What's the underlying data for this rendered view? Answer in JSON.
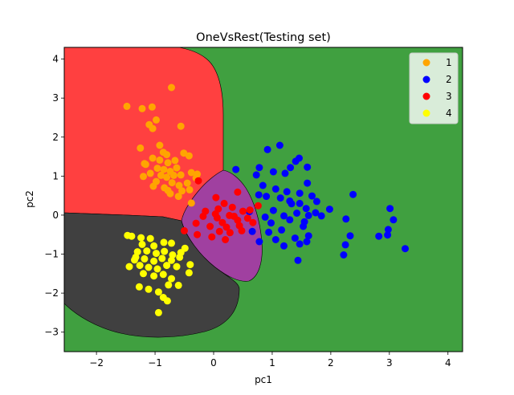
{
  "chart_data": {
    "type": "scatter",
    "title": "OneVsRest(Testing set)",
    "xlabel": "pc1",
    "ylabel": "pc2",
    "xlim": [
      -2.55,
      4.25
    ],
    "ylim": [
      -3.5,
      4.3
    ],
    "xticks": [
      "-2",
      "-1",
      "0",
      "1",
      "2",
      "3",
      "4"
    ],
    "yticks": [
      "-3",
      "-2",
      "-1",
      "0",
      "1",
      "2",
      "3",
      "4"
    ],
    "grid": false,
    "legend_placement": "top-right",
    "region_colors": {
      "1": "#ff4040",
      "2": "#40a040",
      "3": "#a040a0",
      "4": "#404040"
    },
    "series": [
      {
        "name": "1",
        "color": "#ffa500",
        "points": [
          [
            -0.72,
            3.27
          ],
          [
            -1.48,
            2.79
          ],
          [
            -1.22,
            2.73
          ],
          [
            -1.05,
            2.77
          ],
          [
            -0.98,
            2.44
          ],
          [
            -1.1,
            2.32
          ],
          [
            -1.04,
            2.22
          ],
          [
            -0.56,
            2.28
          ],
          [
            -1.25,
            1.72
          ],
          [
            -0.92,
            1.79
          ],
          [
            -0.86,
            1.61
          ],
          [
            -0.8,
            1.55
          ],
          [
            -1.04,
            1.46
          ],
          [
            -0.92,
            1.41
          ],
          [
            -0.78,
            1.34
          ],
          [
            -1.16,
            1.3
          ],
          [
            -0.51,
            1.59
          ],
          [
            -0.42,
            1.52
          ],
          [
            -0.96,
            1.2
          ],
          [
            -0.85,
            1.17
          ],
          [
            -0.74,
            1.12
          ],
          [
            -0.63,
            1.21
          ],
          [
            -1.08,
            1.07
          ],
          [
            -0.9,
            1.02
          ],
          [
            -0.8,
            0.97
          ],
          [
            -0.68,
            1.02
          ],
          [
            -0.56,
            1.03
          ],
          [
            -0.38,
            1.09
          ],
          [
            -0.28,
            1.05
          ],
          [
            -1.2,
            0.99
          ],
          [
            -0.98,
            0.86
          ],
          [
            -0.71,
            0.83
          ],
          [
            -0.59,
            0.76
          ],
          [
            -0.45,
            0.82
          ],
          [
            -1.03,
            0.74
          ],
          [
            -0.78,
            0.63
          ],
          [
            -0.54,
            0.62
          ],
          [
            -0.41,
            0.65
          ],
          [
            -0.6,
            0.48
          ],
          [
            -0.38,
            0.31
          ],
          [
            -0.84,
            0.7
          ],
          [
            -0.3,
            0.95
          ],
          [
            -0.66,
            1.4
          ],
          [
            -1.18,
            1.32
          ],
          [
            -0.74,
            0.55
          ]
        ]
      },
      {
        "name": "2",
        "color": "#0000ff",
        "points": [
          [
            1.13,
            1.79
          ],
          [
            0.92,
            1.68
          ],
          [
            1.46,
            1.46
          ],
          [
            1.4,
            1.38
          ],
          [
            1.31,
            1.22
          ],
          [
            1.6,
            1.23
          ],
          [
            0.78,
            1.22
          ],
          [
            1.02,
            1.11
          ],
          [
            1.22,
            1.07
          ],
          [
            0.38,
            1.17
          ],
          [
            0.73,
            1.03
          ],
          [
            1.6,
            0.82
          ],
          [
            0.84,
            0.76
          ],
          [
            1.06,
            0.67
          ],
          [
            0.77,
            0.52
          ],
          [
            0.9,
            0.48
          ],
          [
            1.25,
            0.6
          ],
          [
            1.47,
            0.56
          ],
          [
            1.68,
            0.49
          ],
          [
            1.76,
            0.35
          ],
          [
            1.98,
            0.15
          ],
          [
            2.38,
            0.53
          ],
          [
            2.26,
            -0.1
          ],
          [
            1.14,
            0.44
          ],
          [
            1.3,
            0.36
          ],
          [
            1.47,
            0.3
          ],
          [
            1.58,
            0.17
          ],
          [
            0.61,
            0.09
          ],
          [
            1.02,
            0.12
          ],
          [
            0.88,
            -0.05
          ],
          [
            1.2,
            -0.02
          ],
          [
            1.62,
            -0.01
          ],
          [
            1.84,
            -0.02
          ],
          [
            1.42,
            0.05
          ],
          [
            1.55,
            -0.17
          ],
          [
            0.98,
            -0.2
          ],
          [
            1.3,
            -0.12
          ],
          [
            0.66,
            -0.42
          ],
          [
            0.94,
            -0.44
          ],
          [
            1.16,
            -0.38
          ],
          [
            1.53,
            -0.29
          ],
          [
            1.62,
            -0.53
          ],
          [
            0.78,
            -0.68
          ],
          [
            1.06,
            -0.63
          ],
          [
            1.39,
            -0.59
          ],
          [
            1.59,
            -0.68
          ],
          [
            1.47,
            -0.74
          ],
          [
            1.2,
            -0.79
          ],
          [
            1.44,
            -1.16
          ],
          [
            2.25,
            -0.76
          ],
          [
            2.33,
            -0.53
          ],
          [
            2.22,
            -1.02
          ],
          [
            2.82,
            -0.54
          ],
          [
            2.98,
            -0.37
          ],
          [
            2.97,
            -0.51
          ],
          [
            3.01,
            0.17
          ],
          [
            3.07,
            -0.12
          ],
          [
            3.27,
            -0.86
          ],
          [
            1.33,
            0.29
          ],
          [
            1.74,
            0.06
          ]
        ]
      },
      {
        "name": "3",
        "color": "#ff0000",
        "points": [
          [
            -0.26,
            0.88
          ],
          [
            0.04,
            0.45
          ],
          [
            0.41,
            0.59
          ],
          [
            0.18,
            0.3
          ],
          [
            0.32,
            0.2
          ],
          [
            0.08,
            0.16
          ],
          [
            -0.14,
            0.1
          ],
          [
            0.5,
            0.1
          ],
          [
            0.27,
            -0.01
          ],
          [
            0.06,
            -0.07
          ],
          [
            -0.18,
            -0.03
          ],
          [
            0.41,
            -0.13
          ],
          [
            0.58,
            -0.08
          ],
          [
            0.15,
            -0.19
          ],
          [
            -0.06,
            -0.29
          ],
          [
            0.22,
            -0.31
          ],
          [
            0.44,
            -0.27
          ],
          [
            0.67,
            -0.19
          ],
          [
            0.76,
            0.24
          ],
          [
            0.62,
            0.13
          ],
          [
            -0.3,
            -0.21
          ],
          [
            0.1,
            -0.42
          ],
          [
            0.28,
            -0.45
          ],
          [
            -0.03,
            -0.56
          ],
          [
            0.48,
            -0.4
          ],
          [
            0.2,
            -0.63
          ],
          [
            -0.5,
            -0.4
          ],
          [
            -0.28,
            -0.5
          ],
          [
            0.35,
            -0.03
          ],
          [
            0.03,
            0.03
          ]
        ]
      },
      {
        "name": "4",
        "color": "#ffff00",
        "points": [
          [
            -1.47,
            -0.52
          ],
          [
            -1.4,
            -0.54
          ],
          [
            -1.24,
            -0.58
          ],
          [
            -1.08,
            -0.6
          ],
          [
            -1.22,
            -0.75
          ],
          [
            -1.02,
            -0.79
          ],
          [
            -0.85,
            -0.7
          ],
          [
            -0.72,
            -0.72
          ],
          [
            -1.3,
            -0.94
          ],
          [
            -1.14,
            -0.92
          ],
          [
            -0.98,
            -0.98
          ],
          [
            -0.84,
            -0.93
          ],
          [
            -0.7,
            -1.02
          ],
          [
            -0.56,
            -0.96
          ],
          [
            -1.33,
            -1.08
          ],
          [
            -1.18,
            -1.12
          ],
          [
            -1.02,
            -1.18
          ],
          [
            -0.88,
            -1.11
          ],
          [
            -0.72,
            -1.16
          ],
          [
            -0.58,
            -1.08
          ],
          [
            -1.26,
            -1.29
          ],
          [
            -1.11,
            -1.34
          ],
          [
            -0.96,
            -1.38
          ],
          [
            -0.8,
            -1.29
          ],
          [
            -0.63,
            -1.32
          ],
          [
            -1.44,
            -1.32
          ],
          [
            -0.4,
            -1.27
          ],
          [
            -1.2,
            -1.5
          ],
          [
            -1.02,
            -1.56
          ],
          [
            -0.86,
            -1.52
          ],
          [
            -0.72,
            -1.63
          ],
          [
            -0.42,
            -1.48
          ],
          [
            -1.27,
            -1.84
          ],
          [
            -1.11,
            -1.9
          ],
          [
            -0.94,
            -1.97
          ],
          [
            -0.77,
            -1.79
          ],
          [
            -0.6,
            -1.8
          ],
          [
            -0.86,
            -2.11
          ],
          [
            -0.79,
            -2.2
          ],
          [
            -0.94,
            -2.5
          ],
          [
            -1.35,
            -1.15
          ],
          [
            -0.49,
            -0.85
          ]
        ]
      }
    ]
  }
}
